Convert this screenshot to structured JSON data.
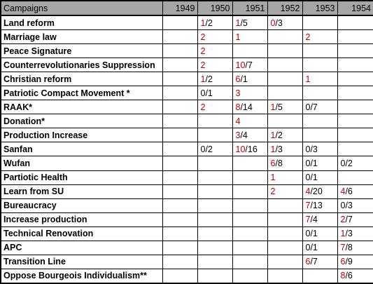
{
  "table": {
    "header": {
      "first": "Campaigns",
      "years": [
        "1949",
        "1950",
        "1951",
        "1952",
        "1953",
        "1954"
      ]
    },
    "colors": {
      "red": "#c00000",
      "black": "#000000",
      "header_bg": "#a6a6a6"
    },
    "rows": [
      {
        "name": "Land reform",
        "cells": [
          {
            "red": "",
            "black": ""
          },
          {
            "red": "1",
            "black": "/2"
          },
          {
            "red": "1",
            "black": "/5"
          },
          {
            "red": "0",
            "black": "/3"
          },
          {
            "red": "",
            "black": ""
          },
          {
            "red": "",
            "black": ""
          }
        ]
      },
      {
        "name": "Marriage law",
        "cells": [
          {
            "red": "",
            "black": ""
          },
          {
            "red": "2",
            "black": ""
          },
          {
            "red": "1",
            "black": ""
          },
          {
            "red": "",
            "black": ""
          },
          {
            "red": "2",
            "black": ""
          },
          {
            "red": "",
            "black": ""
          }
        ]
      },
      {
        "name": "Peace Signature",
        "cells": [
          {
            "red": "",
            "black": ""
          },
          {
            "red": "2",
            "black": ""
          },
          {
            "red": "",
            "black": ""
          },
          {
            "red": "",
            "black": ""
          },
          {
            "red": "",
            "black": ""
          },
          {
            "red": "",
            "black": ""
          }
        ]
      },
      {
        "name": "Counterrevolutionaries Suppression",
        "cells": [
          {
            "red": "",
            "black": ""
          },
          {
            "red": "2",
            "black": ""
          },
          {
            "red": "10",
            "black": "/7"
          },
          {
            "red": "",
            "black": ""
          },
          {
            "red": "",
            "black": ""
          },
          {
            "red": "",
            "black": ""
          }
        ]
      },
      {
        "name": "Christian reform",
        "cells": [
          {
            "red": "",
            "black": ""
          },
          {
            "red": "1",
            "black": "/2"
          },
          {
            "red": "6",
            "black": "/1"
          },
          {
            "red": "",
            "black": ""
          },
          {
            "red": "1",
            "black": ""
          },
          {
            "red": "",
            "black": ""
          }
        ]
      },
      {
        "name": "Patriotic Compact Movement *",
        "cells": [
          {
            "red": "",
            "black": ""
          },
          {
            "red": "",
            "black": "0/1"
          },
          {
            "red": "3",
            "black": ""
          },
          {
            "red": "",
            "black": ""
          },
          {
            "red": "",
            "black": ""
          },
          {
            "red": "",
            "black": ""
          }
        ]
      },
      {
        "name": "RAAK*",
        "cells": [
          {
            "red": "",
            "black": ""
          },
          {
            "red": "2",
            "black": ""
          },
          {
            "red": "8",
            "black": "/14"
          },
          {
            "red": "1",
            "black": "/5"
          },
          {
            "red": "",
            "black": "0/7"
          },
          {
            "red": "",
            "black": ""
          }
        ]
      },
      {
        "name": "Donation*",
        "cells": [
          {
            "red": "",
            "black": ""
          },
          {
            "red": "",
            "black": ""
          },
          {
            "red": "4",
            "black": ""
          },
          {
            "red": "",
            "black": ""
          },
          {
            "red": "",
            "black": ""
          },
          {
            "red": "",
            "black": ""
          }
        ]
      },
      {
        "name": "Production Increase",
        "cells": [
          {
            "red": "",
            "black": ""
          },
          {
            "red": "",
            "black": ""
          },
          {
            "red": "3",
            "black": "/4"
          },
          {
            "red": "1",
            "black": "/2"
          },
          {
            "red": "",
            "black": ""
          },
          {
            "red": "",
            "black": ""
          }
        ]
      },
      {
        "name": "Sanfan",
        "cells": [
          {
            "red": "",
            "black": ""
          },
          {
            "red": "",
            "black": "0/2"
          },
          {
            "red": "10",
            "black": "/16"
          },
          {
            "red": "1",
            "black": "/3"
          },
          {
            "red": "",
            "black": "0/3"
          },
          {
            "red": "",
            "black": ""
          }
        ]
      },
      {
        "name": "Wufan",
        "cells": [
          {
            "red": "",
            "black": ""
          },
          {
            "red": "",
            "black": ""
          },
          {
            "red": "",
            "black": ""
          },
          {
            "red": "6",
            "black": "/8"
          },
          {
            "red": "",
            "black": "0/1"
          },
          {
            "red": "",
            "black": "0/2"
          }
        ]
      },
      {
        "name": "Partiotic Health",
        "cells": [
          {
            "red": "",
            "black": ""
          },
          {
            "red": "",
            "black": ""
          },
          {
            "red": "",
            "black": ""
          },
          {
            "red": "1",
            "black": ""
          },
          {
            "red": "",
            "black": "0/1"
          },
          {
            "red": "",
            "black": ""
          }
        ]
      },
      {
        "name": "Learn from SU",
        "cells": [
          {
            "red": "",
            "black": ""
          },
          {
            "red": "",
            "black": ""
          },
          {
            "red": "",
            "black": ""
          },
          {
            "red": "2",
            "black": ""
          },
          {
            "red": "4",
            "black": "/20"
          },
          {
            "red": "4",
            "black": "/6"
          }
        ]
      },
      {
        "name": "Bureaucracy",
        "cells": [
          {
            "red": "",
            "black": ""
          },
          {
            "red": "",
            "black": ""
          },
          {
            "red": "",
            "black": ""
          },
          {
            "red": "",
            "black": ""
          },
          {
            "red": "7",
            "black": "/13"
          },
          {
            "red": "",
            "black": "0/3"
          }
        ]
      },
      {
        "name": "Increase production",
        "cells": [
          {
            "red": "",
            "black": ""
          },
          {
            "red": "",
            "black": ""
          },
          {
            "red": "",
            "black": ""
          },
          {
            "red": "",
            "black": ""
          },
          {
            "red": "7",
            "black": "/4"
          },
          {
            "red": "2",
            "black": "/7"
          }
        ]
      },
      {
        "name": "Technical Renovation",
        "cells": [
          {
            "red": "",
            "black": ""
          },
          {
            "red": "",
            "black": ""
          },
          {
            "red": "",
            "black": ""
          },
          {
            "red": "",
            "black": ""
          },
          {
            "red": "",
            "black": "0/1"
          },
          {
            "red": "1",
            "black": "/3"
          }
        ]
      },
      {
        "name": "APC",
        "cells": [
          {
            "red": "",
            "black": ""
          },
          {
            "red": "",
            "black": ""
          },
          {
            "red": "",
            "black": ""
          },
          {
            "red": "",
            "black": ""
          },
          {
            "red": "",
            "black": "0/1"
          },
          {
            "red": "7",
            "black": "/8"
          }
        ]
      },
      {
        "name": "Transition Line",
        "cells": [
          {
            "red": "",
            "black": ""
          },
          {
            "red": "",
            "black": ""
          },
          {
            "red": "",
            "black": ""
          },
          {
            "red": "",
            "black": ""
          },
          {
            "red": "6",
            "black": "/7"
          },
          {
            "red": "6",
            "black": "/9"
          }
        ]
      },
      {
        "name": "Oppose Bourgeois Individualism**",
        "cells": [
          {
            "red": "",
            "black": ""
          },
          {
            "red": "",
            "black": ""
          },
          {
            "red": "",
            "black": ""
          },
          {
            "red": "",
            "black": ""
          },
          {
            "red": "",
            "black": ""
          },
          {
            "red": "8",
            "black": "/6"
          }
        ]
      }
    ]
  }
}
